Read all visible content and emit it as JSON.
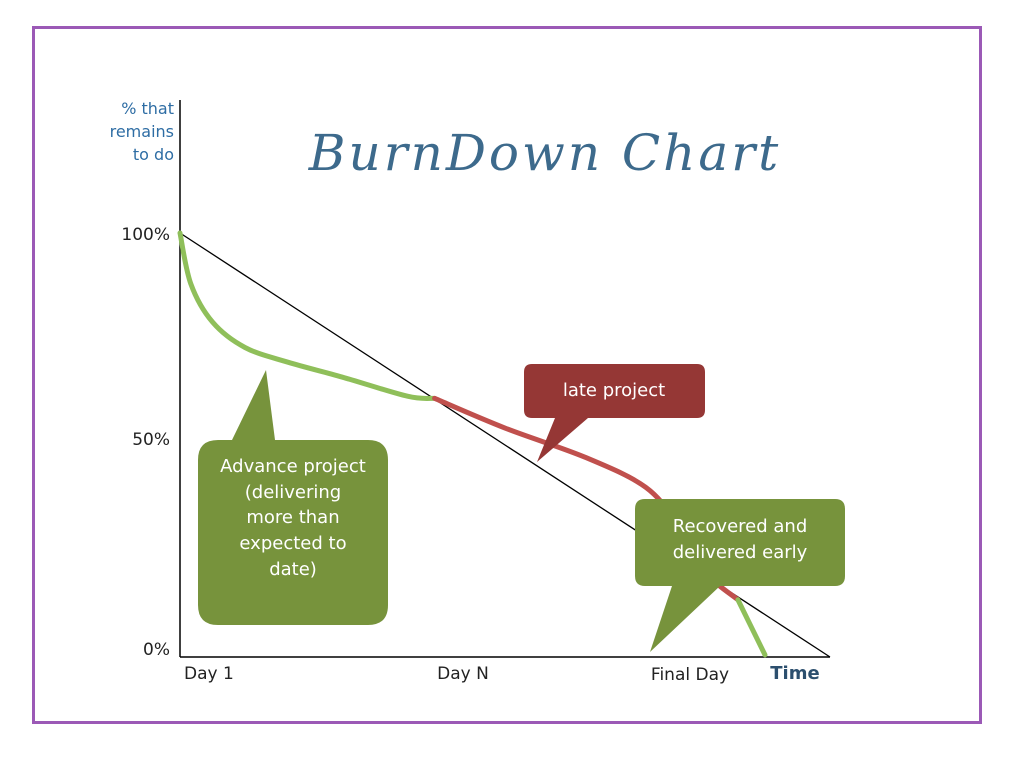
{
  "chart_data": {
    "type": "line",
    "title": "BurnDown Chart",
    "ylabel": [
      "% that",
      "remains",
      "to do"
    ],
    "xlabel": "Time",
    "y_ticks": [
      "100%",
      "50%",
      "0%"
    ],
    "x_ticks": [
      "Day 1",
      "Day N",
      "Final Day"
    ],
    "ylim": [
      0,
      100
    ],
    "xlim": [
      0,
      1.2
    ],
    "grid": false,
    "series": [
      {
        "role": "ideal",
        "color": "#000000",
        "points": [
          [
            0,
            100
          ],
          [
            1.2,
            0
          ]
        ]
      },
      {
        "role": "advance",
        "color": "#8fbf5a",
        "points": [
          [
            0,
            100
          ],
          [
            0.02,
            88
          ],
          [
            0.06,
            79
          ],
          [
            0.12,
            73
          ],
          [
            0.2,
            69.5
          ],
          [
            0.3,
            66
          ],
          [
            0.42,
            61.5
          ],
          [
            0.47,
            61
          ]
        ]
      },
      {
        "role": "late",
        "color": "#c0504d",
        "points": [
          [
            0.47,
            61
          ],
          [
            0.6,
            54
          ],
          [
            0.75,
            47
          ],
          [
            0.86,
            40
          ],
          [
            0.92,
            31
          ],
          [
            0.97,
            20
          ],
          [
            1.03,
            13.5
          ]
        ]
      },
      {
        "role": "recovered",
        "color": "#8fbf5a",
        "points": [
          [
            1.03,
            13.5
          ],
          [
            1.08,
            0.5
          ]
        ]
      }
    ],
    "annotations": [
      {
        "text": [
          "Advance project",
          "(delivering",
          "more than",
          "expected to",
          "date)"
        ],
        "color": "#77933c"
      },
      {
        "text": [
          "late project"
        ],
        "color": "#953735"
      },
      {
        "text": [
          "Recovered and",
          "delivered early"
        ],
        "color": "#77933c"
      }
    ]
  }
}
